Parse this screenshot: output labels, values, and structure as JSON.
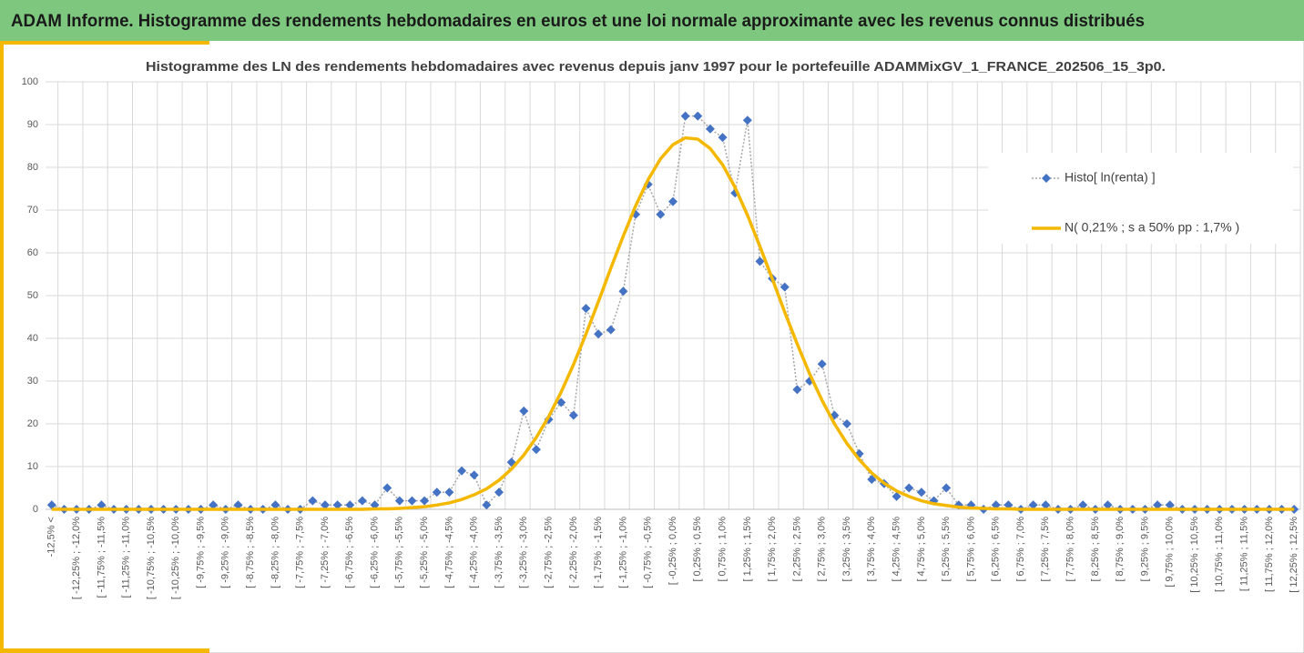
{
  "header": {
    "title": "ADAM Informe. Histogramme des rendements hebdomadaires en euros et une loi normale approximante avec les revenus connus distribués"
  },
  "chart_data": {
    "type": "line",
    "title": "Histogramme des LN des rendements hebdomadaires avec revenus depuis janv 1997 pour le portefeuille ADAMMixGV_1_FRANCE_202506_15_3p0.",
    "categories": [
      "-12,5% <",
      null,
      "[ -12,25% ; -12,0%",
      null,
      "[ -11,75% ; -11,5%",
      null,
      "[ -11,25% ; -11,0%",
      null,
      "[ -10,75% ; -10,5%",
      null,
      "[ -10,25% ; -10,0%",
      null,
      "[ -9,75% ; -9,5%",
      null,
      "[ -9,25% ; -9,0%",
      null,
      "[ -8,75% ; -8,5%",
      null,
      "[ -8,25% ; -8,0%",
      null,
      "[ -7,75% ; -7,5%",
      null,
      "[ -7,25% ; -7,0%",
      null,
      "[ -6,75% ; -6,5%",
      null,
      "[ -6,25% ; -6,0%",
      null,
      "[ -5,75% ; -5,5%",
      null,
      "[ -5,25% ; -5,0%",
      null,
      "[ -4,75% ; -4,5%",
      null,
      "[ -4,25% ; -4,0%",
      null,
      "[ -3,75% ; -3,5%",
      null,
      "[ -3,25% ; -3,0%",
      null,
      "[ -2,75% ; -2,5%",
      null,
      "[ -2,25% ; -2,0%",
      null,
      "[ -1,75% ; -1,5%",
      null,
      "[ -1,25% ; -1,0%",
      null,
      "[ -0,75% ; -0,5%",
      null,
      "[ -0,25% ; 0,0%",
      null,
      "[ 0,25% ; 0,5%",
      null,
      "[ 0,75% ; 1,0%",
      null,
      "[ 1,25% ; 1,5%",
      null,
      "[ 1,75% ; 2,0%",
      null,
      "[ 2,25% ; 2,5%",
      null,
      "[ 2,75% ; 3,0%",
      null,
      "[ 3,25% ; 3,5%",
      null,
      "[ 3,75% ; 4,0%",
      null,
      "[ 4,25% ; 4,5%",
      null,
      "[ 4,75% ; 5,0%",
      null,
      "[ 5,25% ; 5,5%",
      null,
      "[ 5,75% ; 6,0%",
      null,
      "[ 6,25% ; 6,5%",
      null,
      "[ 6,75% ; 7,0%",
      null,
      "[ 7,25% ; 7,5%",
      null,
      "[ 7,75% ; 8,0%",
      null,
      "[ 8,25% ; 8,5%",
      null,
      "[ 8,75% ; 9,0%",
      null,
      "[ 9,25% ; 9,5%",
      null,
      "[ 9,75% ; 10,0%",
      null,
      "[ 10,25% ; 10,5%",
      null,
      "[ 10,75% ; 11,0%",
      null,
      "[ 11,25% ; 11,5%",
      null,
      "[ 11,75% ; 12,0%",
      null,
      "[ 12,25% ; 12,5%"
    ],
    "series": [
      {
        "name": "Histo[ ln(renta) ]",
        "color": "#4472c4",
        "marker": "diamond",
        "values": [
          1,
          0,
          0,
          0,
          1,
          0,
          0,
          0,
          0,
          0,
          0,
          0,
          0,
          1,
          0,
          1,
          0,
          0,
          1,
          0,
          0,
          2,
          1,
          1,
          1,
          2,
          1,
          5,
          2,
          2,
          2,
          4,
          4,
          9,
          8,
          1,
          4,
          11,
          23,
          14,
          21,
          25,
          22,
          47,
          41,
          42,
          51,
          69,
          76,
          69,
          72,
          92,
          92,
          89,
          87,
          74,
          91,
          58,
          54,
          52,
          28,
          30,
          34,
          22,
          20,
          13,
          7,
          6,
          3,
          5,
          4,
          2,
          5,
          1,
          1,
          0,
          1,
          1,
          0,
          1,
          1,
          0,
          0,
          1,
          0,
          1,
          0,
          0,
          0,
          1,
          1,
          0,
          0,
          0,
          0,
          0,
          0,
          0,
          0,
          0,
          0
        ]
      },
      {
        "name": "N( 0,21% ; s a 50% pp : 1,7% )",
        "color": "#f5b800",
        "marker": "none",
        "values": [
          0,
          0,
          0,
          0,
          0,
          0,
          0,
          0,
          0,
          0,
          0,
          0,
          0,
          0,
          0,
          0,
          0,
          0,
          0,
          0,
          0,
          0,
          0,
          0,
          0,
          0,
          0.1,
          0.1,
          0.2,
          0.4,
          0.6,
          1.0,
          1.5,
          2.3,
          3.4,
          4.8,
          6.8,
          9.4,
          12.7,
          16.8,
          21.7,
          27.4,
          33.9,
          41.0,
          48.6,
          56.4,
          63.9,
          71.0,
          77.1,
          82.0,
          85.3,
          86.9,
          86.6,
          84.4,
          80.6,
          75.3,
          68.8,
          61.5,
          53.9,
          46.1,
          38.7,
          31.7,
          25.5,
          20.0,
          15.4,
          11.6,
          8.5,
          6.1,
          4.3,
          3.0,
          2.0,
          1.3,
          0.9,
          0.5,
          0.3,
          0.2,
          0.1,
          0.1,
          0,
          0,
          0,
          0,
          0,
          0,
          0,
          0,
          0,
          0,
          0,
          0,
          0,
          0,
          0,
          0,
          0,
          0,
          0,
          0,
          0,
          0,
          0
        ]
      }
    ],
    "ylim": [
      0,
      100
    ],
    "yticks": [
      0,
      10,
      20,
      30,
      40,
      50,
      60,
      70,
      80,
      90,
      100
    ],
    "grid": true,
    "legend": "right"
  }
}
